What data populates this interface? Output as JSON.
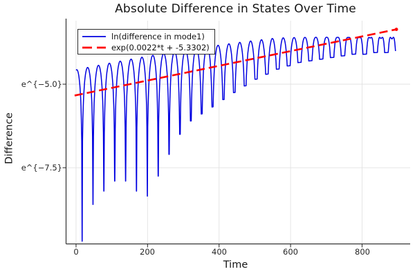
{
  "chart_data": {
    "type": "line",
    "title": "Absolute Difference in States Over Time",
    "xlabel": "Time",
    "ylabel": "Difference",
    "x_tick_labels": [
      "0",
      "200",
      "400",
      "600",
      "800"
    ],
    "x_tick_values": [
      0,
      200,
      400,
      600,
      800
    ],
    "y_ticks": [
      {
        "label": "e^{−5.0}",
        "ln_value": -5.0
      },
      {
        "label": "e^{−7.5}",
        "ln_value": -7.5
      }
    ],
    "x_range": [
      -27,
      919
    ],
    "y_range_ln": [
      -9.77,
      -3.1
    ],
    "grid": true,
    "legend_position": "top-left",
    "colors": {
      "grid": "#e2e2e2",
      "axis": "#333333",
      "tick_text": "#262626"
    },
    "series": [
      {
        "name": "ln(difference in mode1)",
        "color": "#0000e0",
        "style": "solid",
        "line_width": 1.5,
        "model": {
          "description": "ln|difference| : arches env(t)+ln(sin(pi*s)) between sharp cusps",
          "envelope_ln": {
            "c0": -4.57,
            "c1": 0.002222,
            "c2": -9.38e-07
          },
          "cusp_start_t": 17,
          "cusp_period": 30.4,
          "cusp_depths_ln": [
            -9.7,
            -8.6,
            -8.2,
            -7.9,
            -7.9,
            -8.2,
            -8.35,
            -7.75,
            -7.1,
            -6.5,
            -6.1,
            -5.89,
            -5.68,
            -5.46,
            -5.25,
            -5.05,
            -4.85,
            -4.7,
            -4.55,
            -4.45,
            -4.35,
            -4.3,
            -4.25,
            -4.2,
            -4.15,
            -4.1,
            -4.1,
            -4.05,
            -4.05,
            -4.0
          ],
          "t_start": 0,
          "t_end": 903,
          "double_hump": {
            "ramp_start_t": 560,
            "max_notch": 0.28
          }
        }
      },
      {
        "name": "exp(0.0022*t + -5.3302)",
        "color": "#ff0000",
        "style": "dashed",
        "line_width": 2.6,
        "slope": 0.0022,
        "intercept": -5.3302,
        "t_start": -4,
        "t_end": 896,
        "end_marker": true
      }
    ]
  }
}
